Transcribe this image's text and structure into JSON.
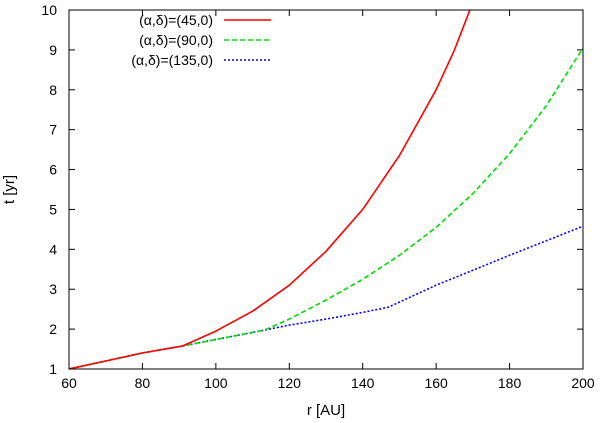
{
  "chart_data": {
    "type": "line",
    "xlabel": "r [AU]",
    "ylabel": "t [yr]",
    "xlim": [
      60,
      200
    ],
    "ylim": [
      1,
      10
    ],
    "xticks": [
      60,
      80,
      100,
      120,
      140,
      160,
      180,
      200
    ],
    "yticks": [
      1,
      2,
      3,
      4,
      5,
      6,
      7,
      8,
      9,
      10
    ],
    "grid": false,
    "legend_position": "top-left",
    "series": [
      {
        "name": "(α,δ)=(45,0)",
        "color": "#ff0000",
        "style": "solid",
        "x": [
          60,
          70,
          80,
          91,
          100,
          110,
          120,
          130,
          140,
          150,
          160,
          165,
          170
        ],
        "y": [
          1.0,
          1.2,
          1.4,
          1.58,
          1.95,
          2.45,
          3.1,
          3.95,
          5.0,
          6.35,
          8.0,
          9.0,
          10.2
        ]
      },
      {
        "name": "(α,δ)=(90,0)",
        "color": "#00dd00",
        "style": "dashed",
        "x": [
          60,
          70,
          80,
          91,
          100,
          113,
          120,
          130,
          140,
          150,
          160,
          170,
          180,
          190,
          200
        ],
        "y": [
          1.0,
          1.2,
          1.4,
          1.58,
          1.74,
          1.97,
          2.25,
          2.73,
          3.25,
          3.85,
          4.55,
          5.4,
          6.4,
          7.6,
          9.05
        ]
      },
      {
        "name": "(α,δ)=(135,0)",
        "color": "#0000ff",
        "style": "dotted",
        "x": [
          60,
          70,
          80,
          91,
          100,
          113,
          120,
          130,
          140,
          147,
          160,
          180,
          200
        ],
        "y": [
          1.0,
          1.2,
          1.4,
          1.58,
          1.74,
          1.97,
          2.1,
          2.25,
          2.42,
          2.55,
          3.1,
          3.85,
          4.58
        ]
      }
    ]
  }
}
